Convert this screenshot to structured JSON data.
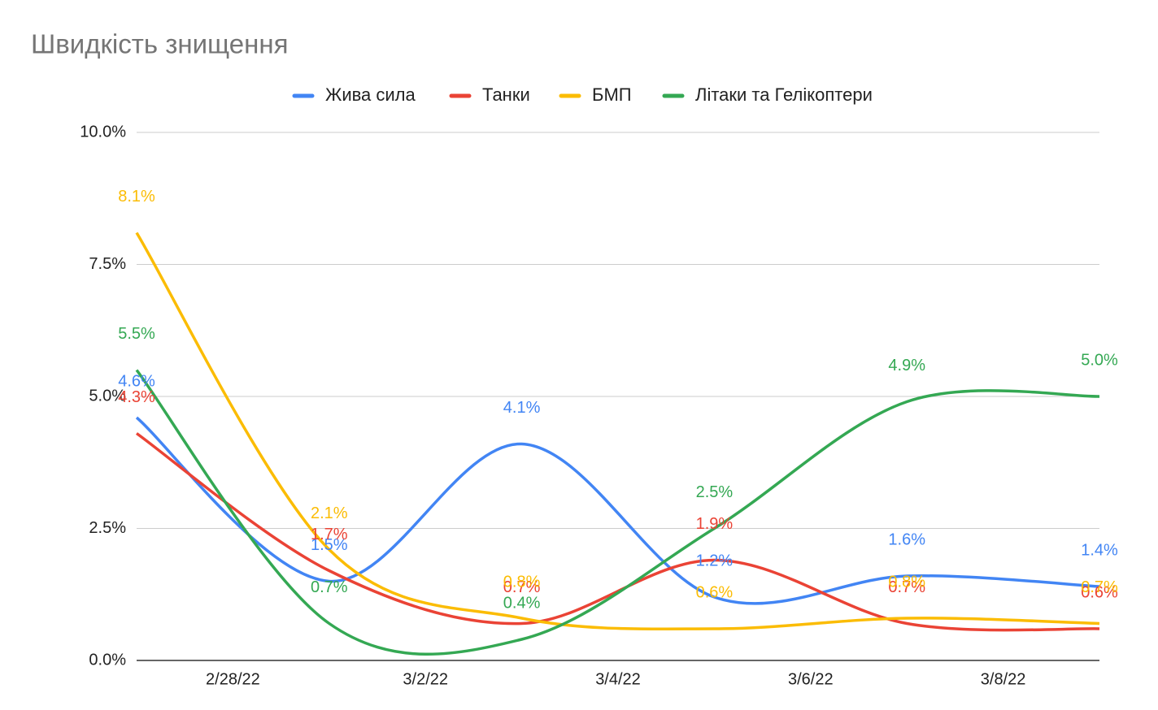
{
  "chart_data": {
    "type": "line",
    "title": "Швидкість знищення",
    "x": [
      "2/27/22",
      "3/1/22",
      "3/3/22",
      "3/5/22",
      "3/7/22",
      "3/9/22"
    ],
    "xlim": [
      "2/27/22",
      "3/9/22"
    ],
    "xticks": [
      "2/28/22",
      "3/2/22",
      "3/4/22",
      "3/6/22",
      "3/8/22"
    ],
    "ylim": [
      0,
      10
    ],
    "yticks": [
      {
        "value": 0,
        "label": "0.0%"
      },
      {
        "value": 2.5,
        "label": "2.5%"
      },
      {
        "value": 5,
        "label": "5.0%"
      },
      {
        "value": 7.5,
        "label": "7.5%"
      },
      {
        "value": 10,
        "label": "10.0%"
      }
    ],
    "grid": true,
    "legend": "top",
    "series": [
      {
        "name": "Жива сила",
        "color": "#4285f4",
        "values": [
          4.6,
          1.5,
          4.1,
          1.2,
          1.6,
          1.4
        ],
        "value_labels": [
          "4.6%",
          "1.5%",
          "4.1%",
          "1.2%",
          "1.6%",
          "1.4%"
        ]
      },
      {
        "name": "Танки",
        "color": "#ea4335",
        "values": [
          4.3,
          1.7,
          0.7,
          1.9,
          0.7,
          0.6
        ],
        "value_labels": [
          "4.3%",
          "1.7%",
          "0.7%",
          "1.9%",
          "0.7%",
          "0.6%"
        ]
      },
      {
        "name": "БМП",
        "color": "#fbbc04",
        "values": [
          8.1,
          2.1,
          0.8,
          0.6,
          0.8,
          0.7
        ],
        "value_labels": [
          "8.1%",
          "2.1%",
          "0.8%",
          "0.6%",
          "0.8%",
          "0.7%"
        ]
      },
      {
        "name": "Літаки та Гелікоптери",
        "color": "#34a853",
        "values": [
          5.5,
          0.7,
          0.4,
          2.5,
          4.9,
          5.0
        ],
        "value_labels": [
          "5.5%",
          "0.7%",
          "0.4%",
          "2.5%",
          "4.9%",
          "5.0%"
        ]
      }
    ]
  }
}
